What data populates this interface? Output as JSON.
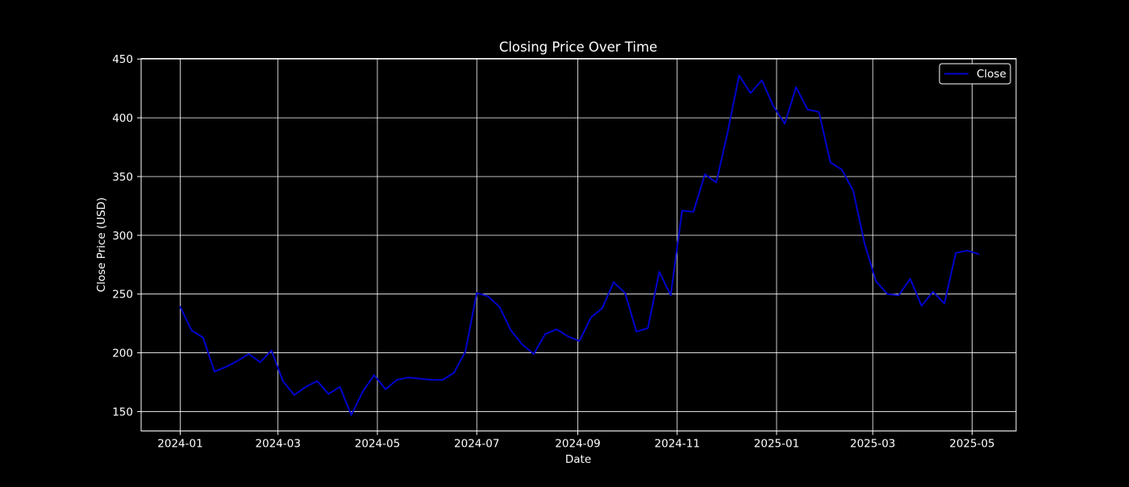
{
  "colors": {
    "background": "#000000",
    "foreground": "#ffffff",
    "grid": "#ffffff",
    "line": "#0000cd"
  },
  "chart_data": {
    "type": "line",
    "title": "Closing Price Over Time",
    "xlabel": "Date",
    "ylabel": "Close Price (USD)",
    "xlim": [
      "2023-12-08",
      "2025-05-28"
    ],
    "ylim": [
      133.5,
      450.5
    ],
    "x_ticks": [
      "2024-01",
      "2024-03",
      "2024-05",
      "2024-07",
      "2024-09",
      "2024-11",
      "2025-01",
      "2025-03",
      "2025-05"
    ],
    "y_ticks": [
      150,
      200,
      250,
      300,
      350,
      400,
      450
    ],
    "grid": true,
    "legend": {
      "position": "top-right",
      "entries": [
        "Close"
      ]
    },
    "series": [
      {
        "name": "Close",
        "color": "#0000cd",
        "x": [
          "2024-01-01",
          "2024-01-08",
          "2024-01-15",
          "2024-01-22",
          "2024-01-29",
          "2024-02-05",
          "2024-02-12",
          "2024-02-19",
          "2024-02-26",
          "2024-03-04",
          "2024-03-11",
          "2024-03-18",
          "2024-03-25",
          "2024-04-01",
          "2024-04-08",
          "2024-04-15",
          "2024-04-22",
          "2024-04-29",
          "2024-05-06",
          "2024-05-13",
          "2024-05-20",
          "2024-05-27",
          "2024-06-03",
          "2024-06-10",
          "2024-06-17",
          "2024-06-24",
          "2024-07-01",
          "2024-07-08",
          "2024-07-15",
          "2024-07-22",
          "2024-07-29",
          "2024-08-05",
          "2024-08-12",
          "2024-08-19",
          "2024-08-26",
          "2024-09-02",
          "2024-09-09",
          "2024-09-16",
          "2024-09-23",
          "2024-09-30",
          "2024-10-07",
          "2024-10-14",
          "2024-10-21",
          "2024-10-28",
          "2024-11-04",
          "2024-11-11",
          "2024-11-18",
          "2024-11-25",
          "2024-12-02",
          "2024-12-09",
          "2024-12-16",
          "2024-12-23",
          "2024-12-30",
          "2025-01-06",
          "2025-01-13",
          "2025-01-20",
          "2025-01-27",
          "2025-02-03",
          "2025-02-10",
          "2025-02-17",
          "2025-02-24",
          "2025-03-03",
          "2025-03-10",
          "2025-03-17",
          "2025-03-24",
          "2025-03-31",
          "2025-04-07",
          "2025-04-14",
          "2025-04-21",
          "2025-04-28",
          "2025-05-05"
        ],
        "values": [
          239,
          219,
          213,
          184,
          188,
          193,
          199,
          192,
          202,
          176,
          164,
          171,
          176,
          165,
          171,
          147,
          167,
          181,
          169,
          177,
          179,
          178,
          177,
          177,
          183,
          201,
          251,
          248,
          239,
          219,
          207,
          199,
          216,
          220,
          214,
          210,
          230,
          238,
          260,
          251,
          218,
          221,
          269,
          249,
          321,
          320,
          352,
          345,
          388,
          436,
          421,
          432,
          410,
          395,
          426,
          407,
          405,
          362,
          356,
          338,
          293,
          261,
          250,
          249,
          263,
          240,
          252,
          242,
          285,
          287,
          284
        ]
      }
    ]
  }
}
